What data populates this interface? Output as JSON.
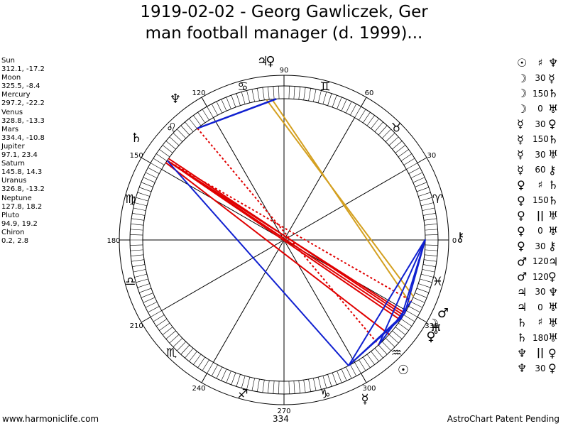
{
  "title_line1": "1919-02-02 - Georg Gawliczek, Ger",
  "title_line2": "man football manager (d. 1999)...",
  "planets": [
    {
      "name": "Sun",
      "values": "312.1, -17.2"
    },
    {
      "name": "Moon",
      "values": "325.5, -8.4"
    },
    {
      "name": "Mercury",
      "values": "297.2, -22.2"
    },
    {
      "name": "Venus",
      "values": "328.8, -13.3"
    },
    {
      "name": "Mars",
      "values": "334.4, -10.8"
    },
    {
      "name": "Jupiter",
      "values": "97.1, 23.4"
    },
    {
      "name": "Saturn",
      "values": "145.8, 14.3"
    },
    {
      "name": "Uranus",
      "values": "326.8, -13.2"
    },
    {
      "name": "Neptune",
      "values": "127.8, 18.2"
    },
    {
      "name": "Pluto",
      "values": "94.9, 19.2"
    },
    {
      "name": "Chiron",
      "values": "0.2, 2.8"
    }
  ],
  "aspects": [
    {
      "p1": "☉",
      "asp": "♯",
      "p2": "♆"
    },
    {
      "p1": "☽",
      "asp": "30",
      "p2": "☿"
    },
    {
      "p1": "☽",
      "asp": "150",
      "p2": "♄"
    },
    {
      "p1": "☽",
      "asp": "0",
      "p2": "♅"
    },
    {
      "p1": "☿",
      "asp": "30",
      "p2": "♀"
    },
    {
      "p1": "☿",
      "asp": "150",
      "p2": "♄"
    },
    {
      "p1": "☿",
      "asp": "30",
      "p2": "♅"
    },
    {
      "p1": "☿",
      "asp": "60",
      "p2": "⚷"
    },
    {
      "p1": "♀",
      "asp": "♯",
      "p2": "♄"
    },
    {
      "p1": "♀",
      "asp": "150",
      "p2": "♄"
    },
    {
      "p1": "♀",
      "asp": "||",
      "p2": "♅"
    },
    {
      "p1": "♀",
      "asp": "0",
      "p2": "♅"
    },
    {
      "p1": "♀",
      "asp": "30",
      "p2": "⚷"
    },
    {
      "p1": "♂",
      "asp": "120",
      "p2": "♃"
    },
    {
      "p1": "♂",
      "asp": "120",
      "p2": "♀"
    },
    {
      "p1": "♃",
      "asp": "30",
      "p2": "♆"
    },
    {
      "p1": "♃",
      "asp": "0",
      "p2": "♅"
    },
    {
      "p1": "♄",
      "asp": "♯",
      "p2": "♅"
    },
    {
      "p1": "♄",
      "asp": "180",
      "p2": "♅"
    },
    {
      "p1": "♆",
      "asp": "||",
      "p2": "♀"
    },
    {
      "p1": "♆",
      "asp": "30",
      "p2": "♀"
    }
  ],
  "degree_labels": [
    "90",
    "60",
    "30",
    "0",
    "330",
    "300",
    "270",
    "240",
    "210",
    "180",
    "150",
    "120"
  ],
  "sign_glyphs": [
    "♈",
    "♉",
    "♊",
    "♋",
    "♌",
    "♍",
    "♎",
    "♏",
    "♐",
    "♑",
    "♒",
    "♓"
  ],
  "chart_planets": [
    {
      "glyph": "♃",
      "lon": 97.1
    },
    {
      "glyph": "♀",
      "lon": 94.9
    },
    {
      "glyph": "♆",
      "lon": 127.8
    },
    {
      "glyph": "♄",
      "lon": 145.8
    },
    {
      "glyph": "⚷",
      "lon": 0.2
    },
    {
      "glyph": "♂",
      "lon": 334.4
    },
    {
      "glyph": "♀",
      "lon": 328.8
    },
    {
      "glyph": "♅",
      "lon": 326.8
    },
    {
      "glyph": "☽",
      "lon": 325.5
    },
    {
      "glyph": "☉",
      "lon": 312.1
    },
    {
      "glyph": "☿",
      "lon": 297.2
    }
  ],
  "colors": {
    "aspect_gold": "#d4a020",
    "aspect_red": "#e00000",
    "aspect_blue": "#1020d0"
  },
  "footer_left": "www.harmoniclife.com",
  "footer_center": "334",
  "footer_right": "AstroChart Patent Pending"
}
